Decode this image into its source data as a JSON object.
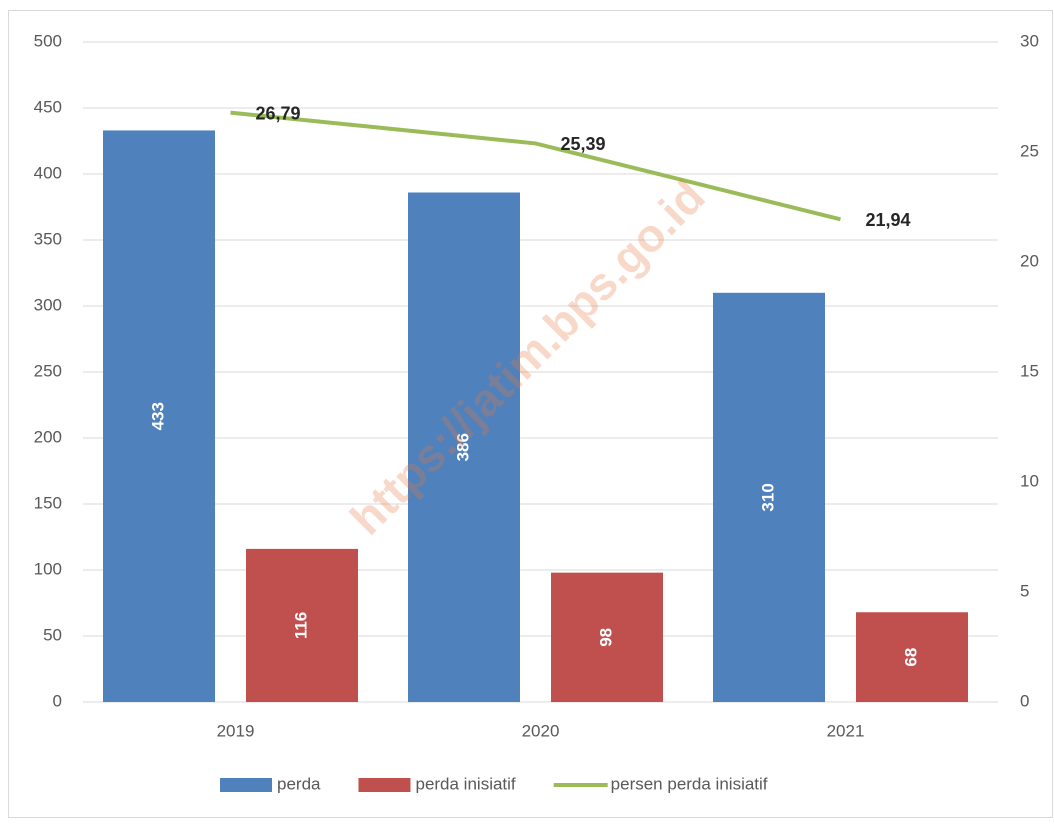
{
  "chart_data": {
    "type": "bar",
    "categories": [
      "2019",
      "2020",
      "2021"
    ],
    "series": [
      {
        "name": "perda",
        "color": "#4f81bd",
        "values": [
          433,
          386,
          310
        ]
      },
      {
        "name": "perda inisiatif",
        "color": "#c0504d",
        "values": [
          116,
          98,
          68
        ]
      },
      {
        "name": "persen perda inisiatif",
        "color": "#9bbb59",
        "type": "line",
        "axis": "y2",
        "values": [
          26.79,
          25.39,
          21.94
        ],
        "value_labels": [
          "26,79",
          "25,39",
          "21,94"
        ]
      }
    ],
    "ylim": [
      0,
      500
    ],
    "yticks": [
      0,
      50,
      100,
      150,
      200,
      250,
      300,
      350,
      400,
      450,
      500
    ],
    "y2lim": [
      0,
      30
    ],
    "y2ticks": [
      0,
      5,
      10,
      15,
      20,
      25,
      30
    ],
    "grid": true,
    "legend": "bottom",
    "watermark": "https://jatim.bps.go.id"
  }
}
